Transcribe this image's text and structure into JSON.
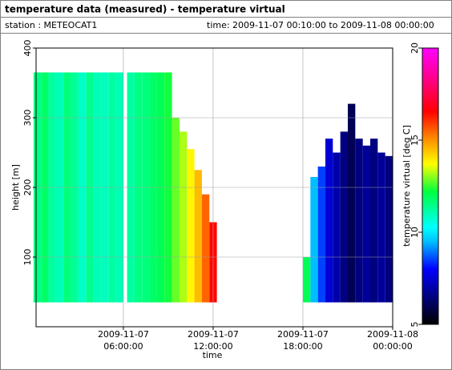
{
  "chart_data": {
    "type": "heatmap",
    "title": "temperature data (measured) - temperature virtual",
    "station": "station : METEOCAT1",
    "time_range": "time: 2009-11-07 00:10:00 to 2009-11-08 00:00:00",
    "xlabel": "time",
    "ylabel": "height [m]",
    "colorbar_label": "temperature virtual [deg C]",
    "x": [
      0.25,
      0.75,
      1.25,
      1.75,
      2.25,
      2.75,
      3.25,
      3.75,
      4.25,
      4.75,
      5.25,
      5.75,
      6.5,
      7,
      7.5,
      8,
      8.5,
      9,
      9.5,
      10,
      10.5,
      11,
      11.5,
      12,
      18.25,
      18.75,
      19.25,
      19.75,
      20.25,
      20.75,
      21.25,
      21.75,
      22.25,
      22.75,
      23.25,
      23.75
    ],
    "bottom": 35,
    "top": [
      365,
      365,
      365,
      365,
      365,
      365,
      365,
      365,
      365,
      365,
      365,
      365,
      365,
      365,
      365,
      365,
      365,
      365,
      300,
      280,
      255,
      225,
      190,
      150,
      100,
      215,
      230,
      270,
      250,
      280,
      320,
      270,
      260,
      270,
      250,
      245
    ],
    "values": [
      11.5,
      11.8,
      11.2,
      11.0,
      11.6,
      11.3,
      10.8,
      11.4,
      11.0,
      10.9,
      11.2,
      11.0,
      11.2,
      11.5,
      11.6,
      11.8,
      12.0,
      12.3,
      12.8,
      13.2,
      13.8,
      14.5,
      15.5,
      16.5,
      12,
      9.5,
      8.5,
      7.5,
      7,
      6.5,
      6,
      6.5,
      6.8,
      6.5,
      6.8,
      6.5
    ],
    "xlim": [
      0.1667,
      24
    ],
    "xticks": [
      {
        "value": 6,
        "label": [
          "2009-11-07",
          "06:00:00"
        ]
      },
      {
        "value": 12,
        "label": [
          "2009-11-07",
          "12:00:00"
        ]
      },
      {
        "value": 18,
        "label": [
          "2009-11-07",
          "18:00:00"
        ]
      },
      {
        "value": 24,
        "label": [
          "2009-11-08",
          "00:00:00"
        ]
      }
    ],
    "ylim": [
      0,
      400
    ],
    "yticks": [
      100,
      200,
      300,
      400
    ],
    "clim": [
      5,
      20
    ],
    "cticks": [
      5,
      10,
      15,
      20
    ],
    "grid": true
  }
}
